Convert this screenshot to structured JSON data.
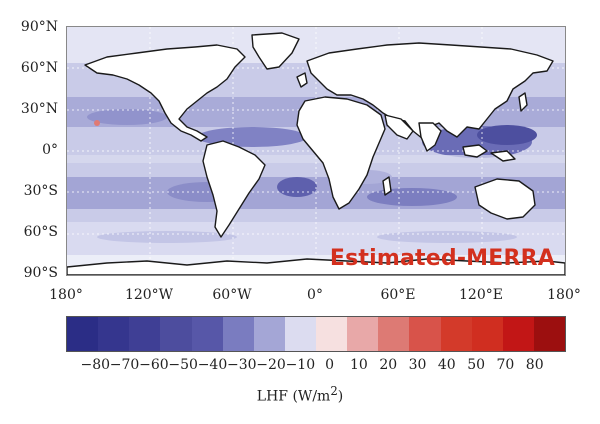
{
  "map": {
    "title": "Estimated-MERRA",
    "lat_labels": [
      "90°N",
      "60°N",
      "30°N",
      "0°",
      "30°S",
      "60°S",
      "90°S"
    ],
    "lon_labels": [
      "180°",
      "120°W",
      "60°W",
      "0°",
      "60°E",
      "120°E",
      "180°"
    ]
  },
  "colorbar": {
    "colors": [
      "#2b2d86",
      "#35368e",
      "#3f3f95",
      "#4d4d9e",
      "#5757a8",
      "#7a7cc0",
      "#a4a6d6",
      "#dcdcf0",
      "#f6e0e0",
      "#e8a8a8",
      "#dd7a74",
      "#d8534a",
      "#d33a2a",
      "#d02e20",
      "#c21616",
      "#9c0f0f"
    ],
    "ticks": [
      "−80",
      "−70",
      "−60",
      "−50",
      "−40",
      "−30",
      "−20",
      "−10",
      "0",
      "10",
      "20",
      "30",
      "40",
      "50",
      "70",
      "80"
    ],
    "label_main": "LHF (W/m",
    "label_sup": "2",
    "label_end": ")"
  }
}
